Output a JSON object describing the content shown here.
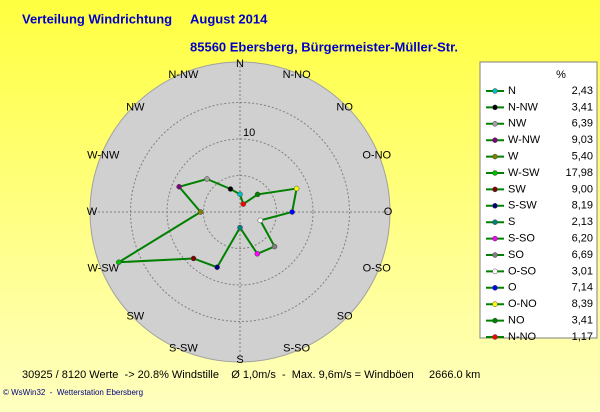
{
  "chart_data": {
    "type": "radar",
    "title": "Verteilung Windrichtung",
    "period": "August 2014",
    "subtitle": "85560 Ebersberg, Bürgermeister-Müller-Str.",
    "categories": [
      "N",
      "N-NO",
      "NO",
      "O-NO",
      "O",
      "O-SO",
      "SO",
      "S-SO",
      "S",
      "S-SW",
      "SW",
      "W-SW",
      "W",
      "W-NW",
      "NW",
      "N-NW"
    ],
    "values": [
      2.43,
      1.17,
      3.41,
      8.39,
      7.14,
      3.01,
      6.69,
      6.2,
      2.13,
      8.19,
      9.0,
      17.98,
      5.4,
      9.03,
      6.39,
      3.41
    ],
    "value_labels": [
      "2,43",
      "1,17",
      "3,41",
      "8,39",
      "7,14",
      "3,01",
      "6,69",
      "6,20",
      "2,13",
      "8,19",
      "9,00",
      "17,98",
      "5,40",
      "9,03",
      "6,39",
      "3,41"
    ],
    "marker_colors": [
      "#00c0c0",
      "#ff0000",
      "#008000",
      "#ffff00",
      "#0000ff",
      "#ffffff",
      "#808080",
      "#ff00ff",
      "#008080",
      "#000080",
      "#800000",
      "#00c000",
      "#808000",
      "#800080",
      "#a0a0a0",
      "#000000"
    ],
    "color": "#008000",
    "rlim": [
      0,
      20
    ],
    "rticks": [
      10
    ],
    "grid_rings": [
      5,
      10,
      15
    ],
    "legend_unit": "%",
    "legend_direction": "counterclockwise",
    "footer": "30925 / 8120 Werte  -> 20.8% Windstille    Ø 1,0m/s  -  Max. 9,6m/s = Windböen     2666.0 km",
    "credit": "© WsWin32  -  Wetterstation Ebersberg"
  }
}
